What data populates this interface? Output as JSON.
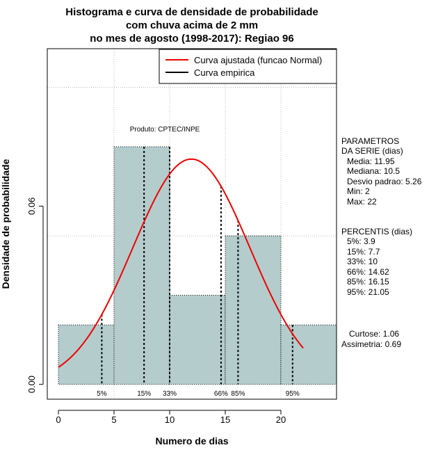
{
  "chart_data": {
    "type": "histogram",
    "title_lines": [
      "Histograma e curva de densidade de probabilidade",
      "com chuva acima de 2 mm",
      "no mes de agosto (1998-2017): Regiao 96"
    ],
    "xlabel": "Numero de dias",
    "ylabel": "Densidade de probabilidade",
    "xlim": [
      -1,
      25
    ],
    "ylim": [
      -0.005,
      0.113
    ],
    "x_ticks": [
      0,
      5,
      10,
      15,
      20
    ],
    "y_ticks": [
      0.0,
      0.06
    ],
    "y_tick_labels": [
      "0.00",
      "0.06"
    ],
    "x_grid": [
      5,
      10,
      15,
      20
    ],
    "y_grid": [
      0.05,
      0.1
    ],
    "bins": [
      {
        "from": 0,
        "to": 5,
        "density": 0.02
      },
      {
        "from": 5,
        "to": 10,
        "density": 0.08
      },
      {
        "from": 10,
        "to": 15,
        "density": 0.03
      },
      {
        "from": 15,
        "to": 20,
        "density": 0.05
      },
      {
        "from": 20,
        "to": 25,
        "density": 0.02
      }
    ],
    "bar_color": "#b4cccc",
    "normal_curve": {
      "mean": 11.95,
      "sd": 5.26,
      "x_from": 0,
      "x_to": 22,
      "color": "#ee0000"
    },
    "percentiles": [
      {
        "label": "5%",
        "value": 3.9
      },
      {
        "label": "15%",
        "value": 7.7
      },
      {
        "label": "33%",
        "value": 10
      },
      {
        "label": "66%",
        "value": 14.62
      },
      {
        "label": "85%",
        "value": 16.15
      },
      {
        "label": "95%",
        "value": 21.05
      }
    ],
    "legend": [
      {
        "label": "Curva ajustada (funcao Normal)",
        "color": "#ee0000"
      },
      {
        "label": "Curva empirica",
        "color": "#000000"
      }
    ],
    "legend_position": "top-right",
    "product_label": "Produto: CPTEC/INPE"
  },
  "side_panel": {
    "params_title_1": "PARAMETROS",
    "params_title_2": "DA SERIE (dias)",
    "media": "Media: 11.95",
    "mediana": "Mediana: 10.5",
    "desvio": "Desvio padrao: 5.26",
    "min": "Min: 2",
    "max": "Max: 22",
    "percentis_title": "PERCENTIS (dias)",
    "p5": "5%: 3.9",
    "p15": "15%: 7.7",
    "p33": "33%: 10",
    "p66": "66%: 14.62",
    "p85": "85%: 16.15",
    "p95": "95%: 21.05",
    "curtose": "Curtose: 1.06",
    "assimetria": "Assimetria: 0.69"
  }
}
